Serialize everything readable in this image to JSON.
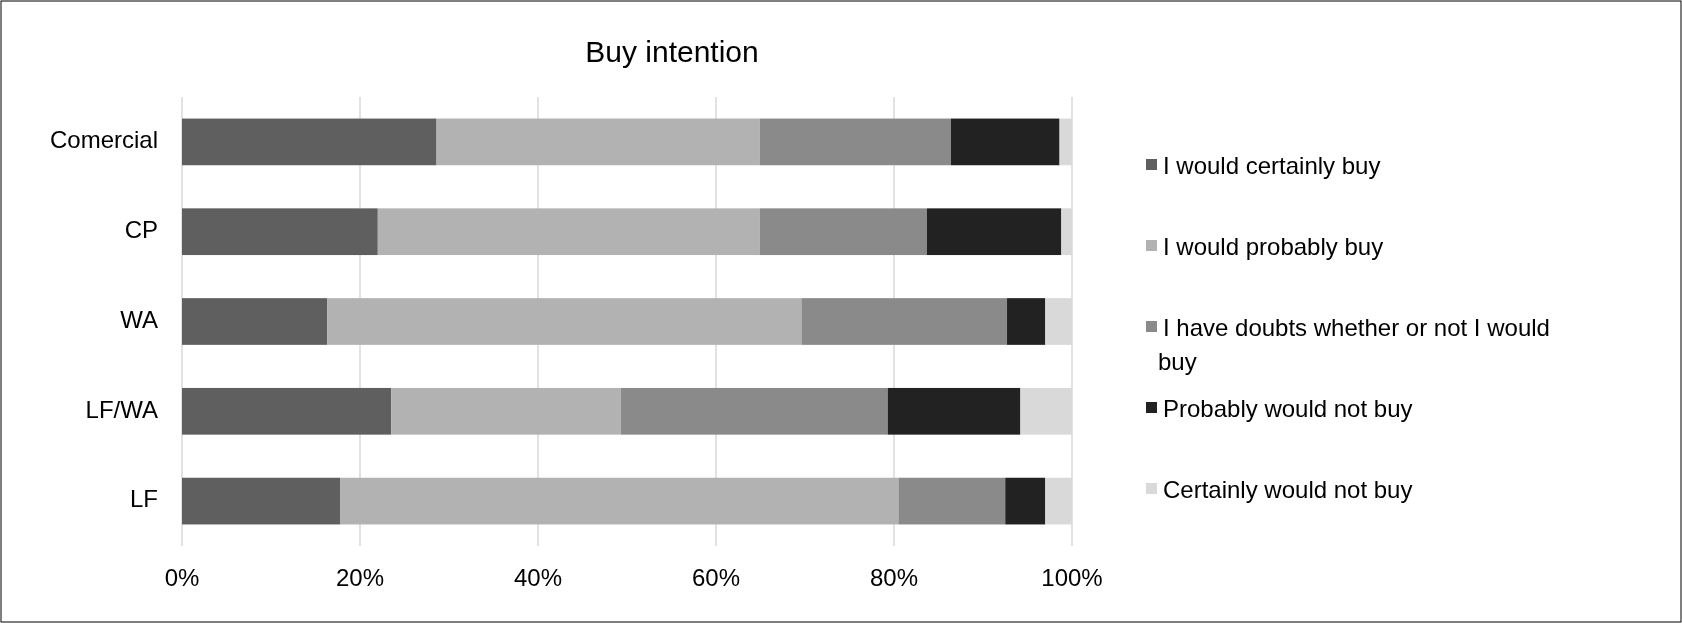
{
  "chart_data": {
    "type": "bar",
    "title": "Buy intention",
    "orientation": "horizontal",
    "stacked": true,
    "categories": [
      "Comercial",
      "CP",
      "WA",
      "LF/WA",
      "LF"
    ],
    "series": [
      {
        "name": "I would certainly buy",
        "color": "#5f5f5f",
        "values": [
          28.6,
          22.0,
          16.3,
          23.5,
          17.8
        ]
      },
      {
        "name": "I would probably buy",
        "color": "#b2b2b2",
        "values": [
          36.3,
          42.9,
          53.3,
          25.8,
          62.7
        ]
      },
      {
        "name": "I have doubts whether or not I would buy",
        "color": "#8a8a8a",
        "values": [
          21.5,
          18.8,
          23.1,
          30.0,
          12.0
        ]
      },
      {
        "name": "Probably would not buy",
        "color": "#222222",
        "values": [
          12.2,
          15.1,
          4.3,
          14.9,
          4.5
        ]
      },
      {
        "name": "Certainly would not buy",
        "color": "#d9d9d9",
        "values": [
          1.4,
          1.2,
          3.0,
          5.8,
          3.0
        ]
      }
    ],
    "xlim": [
      0,
      100
    ],
    "xticks": [
      {
        "value": 0,
        "label": "0%"
      },
      {
        "value": 20,
        "label": "20%"
      },
      {
        "value": 40,
        "label": "40%"
      },
      {
        "value": 60,
        "label": "60%"
      },
      {
        "value": 80,
        "label": "80%"
      },
      {
        "value": 100,
        "label": "100%"
      }
    ],
    "grid": "x",
    "legend": "right"
  }
}
